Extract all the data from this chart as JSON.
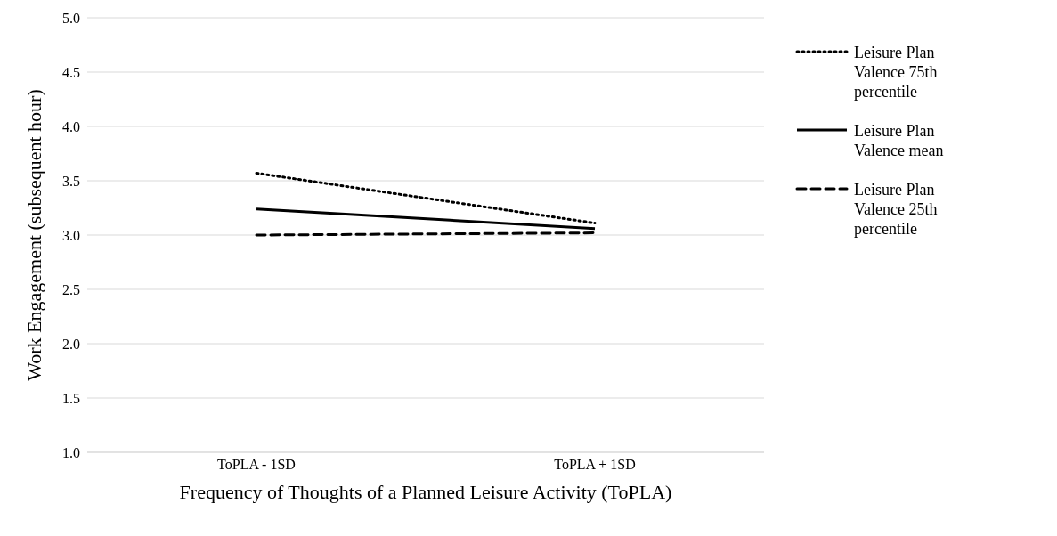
{
  "chart_data": {
    "type": "line",
    "xlabel": "Frequency of Thoughts of a Planned Leisure Activity (ToPLA)",
    "ylabel": "Work Engagement (subsequent hour)",
    "categories": [
      "ToPLA - 1SD",
      "ToPLA + 1SD"
    ],
    "series": [
      {
        "name": "Leisure Plan Valence 75th percentile",
        "color": "#000000",
        "line_style": "dotted",
        "values": [
          3.57,
          3.11
        ]
      },
      {
        "name": "Leisure Plan Valence mean",
        "color": "#000000",
        "line_style": "solid",
        "values": [
          3.24,
          3.06
        ]
      },
      {
        "name": "Leisure Plan Valence 25th percentile",
        "color": "#000000",
        "line_style": "dashed",
        "values": [
          3.0,
          3.02
        ]
      }
    ],
    "ylim": [
      1,
      5
    ],
    "yticks": [
      {
        "value": 1,
        "label": "1.0"
      },
      {
        "value": 1.5,
        "label": "1.5"
      },
      {
        "value": 2,
        "label": "2.0"
      },
      {
        "value": 2.5,
        "label": "2.5"
      },
      {
        "value": 3,
        "label": "3.0"
      },
      {
        "value": 3.5,
        "label": "3.5"
      },
      {
        "value": 4,
        "label": "4.0"
      },
      {
        "value": 4.5,
        "label": "4.5"
      },
      {
        "value": 5,
        "label": "5.0"
      }
    ],
    "grid": "y",
    "legend": "right",
    "marker": "none"
  }
}
